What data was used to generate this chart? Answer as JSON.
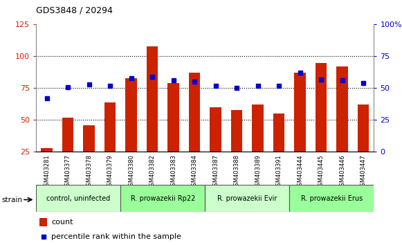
{
  "title": "GDS3848 / 20294",
  "samples": [
    "GSM403281",
    "GSM403377",
    "GSM403378",
    "GSM403379",
    "GSM403380",
    "GSM403382",
    "GSM403383",
    "GSM403384",
    "GSM403387",
    "GSM403388",
    "GSM403389",
    "GSM403391",
    "GSM403444",
    "GSM403445",
    "GSM403446",
    "GSM403447"
  ],
  "count_values": [
    28,
    52,
    46,
    64,
    83,
    108,
    79,
    87,
    60,
    58,
    62,
    55,
    87,
    95,
    92,
    62
  ],
  "percentile_values": [
    42,
    51,
    53,
    52,
    58,
    59,
    56,
    55,
    52,
    50,
    52,
    52,
    62,
    57,
    56,
    54
  ],
  "bar_color": "#cc2200",
  "marker_color": "#0000cc",
  "left_axis_color": "#cc2200",
  "right_axis_color": "#0000cc",
  "ylim_left": [
    25,
    125
  ],
  "ylim_right": [
    0,
    100
  ],
  "yticks_left": [
    25,
    50,
    75,
    100,
    125
  ],
  "ytick_labels_right": [
    "0",
    "25",
    "50",
    "75",
    "100%"
  ],
  "grid_yticks": [
    50,
    75,
    100
  ],
  "groups": [
    {
      "label": "control, uninfected",
      "indices": [
        0,
        1,
        2,
        3
      ],
      "color": "#ccffcc"
    },
    {
      "label": "R. prowazekii Rp22",
      "indices": [
        4,
        5,
        6,
        7
      ],
      "color": "#99ff99"
    },
    {
      "label": "R. prowazekii Evir",
      "indices": [
        8,
        9,
        10,
        11
      ],
      "color": "#ccffcc"
    },
    {
      "label": "R. prowazekii Erus",
      "indices": [
        12,
        13,
        14,
        15
      ],
      "color": "#99ff99"
    }
  ],
  "strain_label": "strain",
  "legend_count": "count",
  "legend_percentile": "percentile rank within the sample",
  "bar_width": 0.55,
  "background_color": "#ffffff",
  "tick_area_color": "#c8c8c8"
}
